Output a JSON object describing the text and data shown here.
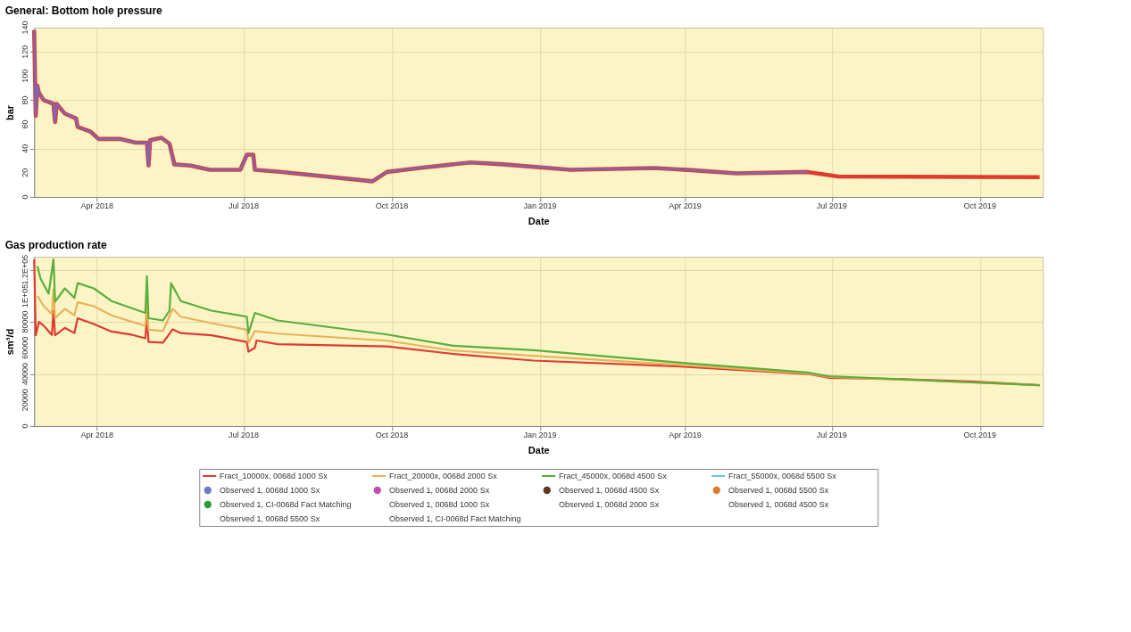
{
  "chart_data": [
    {
      "type": "line",
      "title": "General: Bottom hole pressure",
      "xlabel": "Date",
      "ylabel": "bar",
      "xlim": [
        "2018-02-21",
        "2019-11-09"
      ],
      "xticks": [
        {
          "value": "2018-04-01",
          "label": "Apr 2018"
        },
        {
          "value": "2018-07-01",
          "label": "Jul 2018"
        },
        {
          "value": "2018-10-01",
          "label": "Oct 2018"
        },
        {
          "value": "2019-01-01",
          "label": "Jan 2019"
        },
        {
          "value": "2019-04-01",
          "label": "Apr 2019"
        },
        {
          "value": "2019-07-01",
          "label": "Jul 2019"
        },
        {
          "value": "2019-10-01",
          "label": "Oct 2019"
        }
      ],
      "ylim": [
        0,
        140
      ],
      "yticks": [
        0,
        20,
        40,
        60,
        80,
        100,
        120,
        140
      ],
      "grid": true,
      "marker": "none",
      "line_style": "solid",
      "series": [
        {
          "color": "#7b68b8",
          "x": [
            "2018-02-21",
            "2018-02-22",
            "2018-02-23",
            "2018-02-24",
            "2018-02-27",
            "2018-03-05",
            "2018-03-06",
            "2018-03-07",
            "2018-03-12",
            "2018-03-19",
            "2018-03-20",
            "2018-03-28",
            "2018-04-02",
            "2018-04-15",
            "2018-04-25",
            "2018-05-02",
            "2018-05-03",
            "2018-05-04",
            "2018-05-11",
            "2018-05-13",
            "2018-05-16",
            "2018-05-19",
            "2018-05-29",
            "2018-06-10",
            "2018-06-29",
            "2018-07-03",
            "2018-07-07",
            "2018-07-08",
            "2018-07-22",
            "2018-09-19",
            "2018-09-28",
            "2018-10-18",
            "2018-11-19",
            "2018-12-09",
            "2019-01-20",
            "2019-03-13",
            "2019-04-07",
            "2019-05-03",
            "2019-06-16"
          ],
          "values": [
            138,
            67,
            92,
            86,
            80,
            77,
            62,
            77,
            69,
            65,
            58,
            54,
            48,
            48,
            45,
            45,
            26,
            47,
            49,
            47,
            44,
            27,
            26,
            22.5,
            22.5,
            35,
            35,
            22.5,
            21,
            13,
            20.7,
            24,
            28.6,
            27,
            22.5,
            24,
            22,
            19.5,
            20.7
          ]
        },
        {
          "color": "#e03a30",
          "x": [
            "2018-02-21",
            "2018-02-22",
            "2018-02-23",
            "2018-02-24",
            "2018-02-27",
            "2018-03-05",
            "2018-03-06",
            "2018-03-07",
            "2018-03-12",
            "2018-03-19",
            "2018-03-20",
            "2018-03-28",
            "2018-04-02",
            "2018-04-15",
            "2018-04-25",
            "2018-05-02",
            "2018-05-03",
            "2018-05-04",
            "2018-05-11",
            "2018-05-13",
            "2018-05-16",
            "2018-05-19",
            "2018-05-29",
            "2018-06-10",
            "2018-06-29",
            "2018-07-03",
            "2018-07-07",
            "2018-07-08",
            "2018-07-22",
            "2018-09-19",
            "2018-09-28",
            "2018-10-18",
            "2018-11-19",
            "2018-12-09",
            "2019-01-20",
            "2019-03-13",
            "2019-04-07",
            "2019-05-03",
            "2019-06-16",
            "2019-07-05",
            "2019-11-07"
          ],
          "values": [
            138,
            67,
            92,
            86,
            80,
            77,
            62,
            77,
            69,
            65,
            58,
            54,
            48,
            48,
            45,
            45,
            26,
            47,
            49,
            47,
            44,
            27,
            26,
            22.5,
            22.5,
            35,
            35,
            22.5,
            21,
            13,
            20.7,
            24,
            28.6,
            27,
            22.5,
            24,
            22,
            19.5,
            20.7,
            17,
            16.4
          ]
        }
      ]
    },
    {
      "type": "line",
      "title": "Gas production rate",
      "xlabel": "Date",
      "ylabel": "sm³/d",
      "xlim": [
        "2018-02-21",
        "2019-11-09"
      ],
      "xticks": [
        {
          "value": "2018-04-01",
          "label": "Apr 2018"
        },
        {
          "value": "2018-07-01",
          "label": "Jul 2018"
        },
        {
          "value": "2018-10-01",
          "label": "Oct 2018"
        },
        {
          "value": "2019-01-01",
          "label": "Jan 2019"
        },
        {
          "value": "2019-04-01",
          "label": "Apr 2019"
        },
        {
          "value": "2019-07-01",
          "label": "Jul 2019"
        },
        {
          "value": "2019-10-01",
          "label": "Oct 2019"
        }
      ],
      "ylim": [
        0,
        130000
      ],
      "yticks": [
        0,
        20000,
        40000,
        60000,
        80000,
        {
          "value": 100000,
          "label": "1E+05"
        },
        {
          "value": 120000,
          "label": "1.2E+05"
        }
      ],
      "grid": true,
      "marker": "none",
      "line_style": "solid",
      "legend": "bottom",
      "series": [
        {
          "name": "Fract_10000x, 0068d 1000 Sx",
          "type": "line",
          "color": "#e03a30",
          "x": [
            "2018-02-21",
            "2018-02-22",
            "2018-02-24",
            "2018-02-27",
            "2018-03-04",
            "2018-03-05",
            "2018-03-06",
            "2018-03-12",
            "2018-03-18",
            "2018-03-20",
            "2018-03-30",
            "2018-04-10",
            "2018-04-23",
            "2018-05-01",
            "2018-05-02",
            "2018-05-03",
            "2018-05-12",
            "2018-05-18",
            "2018-05-23",
            "2018-06-11",
            "2018-07-03",
            "2018-07-04",
            "2018-07-08",
            "2018-07-09",
            "2018-07-22",
            "2018-09-28",
            "2018-11-08",
            "2018-12-28",
            "2019-03-29",
            "2019-06-16",
            "2019-06-29",
            "2019-08-15",
            "2019-09-25",
            "2019-11-07"
          ],
          "values": [
            128000,
            69700,
            80000,
            77000,
            70000,
            88600,
            69700,
            75400,
            71400,
            82800,
            78300,
            72600,
            70000,
            67400,
            82800,
            64600,
            64000,
            74300,
            71400,
            69700,
            64600,
            57100,
            60000,
            65700,
            62900,
            61100,
            55400,
            50300,
            45700,
            40000,
            37100,
            36000,
            34300,
            31400
          ]
        },
        {
          "name": "Fract_20000x, 0068d 2000 Sx",
          "type": "line",
          "color": "#e8b25a",
          "x": [
            "2018-02-23",
            "2018-02-27",
            "2018-03-04",
            "2018-03-05",
            "2018-03-06",
            "2018-03-12",
            "2018-03-18",
            "2018-03-20",
            "2018-03-30",
            "2018-04-10",
            "2018-04-23",
            "2018-05-01",
            "2018-05-02",
            "2018-05-03",
            "2018-05-12",
            "2018-05-18",
            "2018-05-23",
            "2018-06-11",
            "2018-07-03",
            "2018-07-04",
            "2018-07-08",
            "2018-07-22",
            "2018-09-28",
            "2018-11-08",
            "2018-12-28",
            "2019-03-29",
            "2019-06-16",
            "2019-06-29",
            "2019-11-07"
          ],
          "values": [
            100000,
            92000,
            86000,
            105000,
            83000,
            90000,
            85000,
            95000,
            92000,
            85000,
            80000,
            77000,
            95000,
            74000,
            73000,
            90000,
            84000,
            79000,
            74000,
            64000,
            73000,
            71000,
            65500,
            58000,
            54000,
            47000,
            40500,
            37800,
            31400
          ]
        },
        {
          "name": "Fract_45000x, 0068d 4500 Sx",
          "type": "line",
          "color": "#5aae3c",
          "x": [
            "2018-02-23",
            "2018-02-25",
            "2018-03-02",
            "2018-03-05",
            "2018-03-06",
            "2018-03-12",
            "2018-03-18",
            "2018-03-20",
            "2018-03-30",
            "2018-04-10",
            "2018-04-23",
            "2018-05-01",
            "2018-05-02",
            "2018-05-03",
            "2018-05-12",
            "2018-05-16",
            "2018-05-17",
            "2018-05-23",
            "2018-06-11",
            "2018-07-03",
            "2018-07-04",
            "2018-07-08",
            "2018-07-22",
            "2018-09-28",
            "2018-11-08",
            "2018-12-28",
            "2019-03-29",
            "2019-06-16",
            "2019-06-29",
            "2019-11-07"
          ],
          "values": [
            122800,
            113000,
            101700,
            128000,
            95400,
            105700,
            98300,
            109700,
            105700,
            96000,
            90300,
            86900,
            115000,
            82800,
            81100,
            88600,
            109700,
            96000,
            88600,
            84000,
            71400,
            86900,
            81100,
            70300,
            61700,
            58300,
            48600,
            41100,
            38300,
            31400
          ]
        },
        {
          "name": "Fract_55000x, 0068d 5500 Sx",
          "type": "line",
          "color": "#6cc4e8"
        },
        {
          "name": "Observed 1, 0068d 1000 Sx",
          "type": "scatter",
          "color": "#6b7cc0"
        },
        {
          "name": "Observed 1, 0068d 2000 Sx",
          "type": "scatter",
          "color": "#c050b0"
        },
        {
          "name": "Observed 1, 0068d 4500 Sx",
          "type": "scatter",
          "color": "#5a3a20"
        },
        {
          "name": "Observed 1, 0068d 5500 Sx",
          "type": "scatter",
          "color": "#e07a30"
        },
        {
          "name": "Observed 1, CI-0068d Fact Matching",
          "type": "scatter",
          "color": "#2a9a3a"
        },
        {
          "name": "Observed 1, 0068d 1000 Sx",
          "type": "scatter",
          "color": null
        },
        {
          "name": "Observed 1, 0068d 2000 Sx",
          "type": "scatter",
          "color": null
        },
        {
          "name": "Observed 1, 0068d 4500 Sx",
          "type": "scatter",
          "color": null
        },
        {
          "name": "Observed 1, 0068d 5500 Sx",
          "type": "scatter",
          "color": null
        },
        {
          "name": "Observed 1, CI-0068d Fact Matching",
          "type": "scatter",
          "color": null
        }
      ]
    }
  ]
}
